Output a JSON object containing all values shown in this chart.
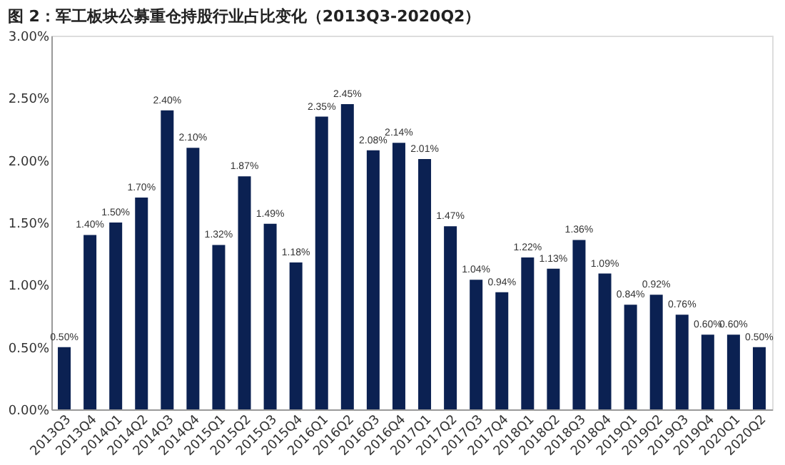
{
  "chart_data": {
    "type": "bar",
    "title": "图 2：军工板块公募重仓持股行业占比变化（2013Q3-2020Q2）",
    "categories": [
      "2013Q3",
      "2013Q4",
      "2014Q1",
      "2014Q2",
      "2014Q3",
      "2014Q4",
      "2015Q1",
      "2015Q2",
      "2015Q3",
      "2015Q4",
      "2016Q1",
      "2016Q2",
      "2016Q3",
      "2016Q4",
      "2017Q1",
      "2017Q2",
      "2017Q3",
      "2017Q4",
      "2018Q1",
      "2018Q2",
      "2018Q3",
      "2018Q4",
      "2019Q1",
      "2019Q2",
      "2019Q3",
      "2019Q4",
      "2020Q1",
      "2020Q2"
    ],
    "values": [
      0.5,
      1.4,
      1.5,
      1.7,
      2.4,
      2.1,
      1.32,
      1.87,
      1.49,
      1.18,
      2.35,
      2.45,
      2.08,
      2.14,
      2.01,
      1.47,
      1.04,
      0.94,
      1.22,
      1.13,
      1.36,
      1.09,
      0.84,
      0.92,
      0.76,
      0.6,
      0.6,
      0.5
    ],
    "value_labels": [
      "0.50%",
      "1.40%",
      "1.50%",
      "1.70%",
      "2.40%",
      "2.10%",
      "1.32%",
      "1.87%",
      "1.49%",
      "1.18%",
      "2.35%",
      "2.45%",
      "2.08%",
      "2.14%",
      "2.01%",
      "1.47%",
      "1.04%",
      "0.94%",
      "1.22%",
      "1.13%",
      "1.36%",
      "1.09%",
      "0.84%",
      "0.92%",
      "0.76%",
      "0.60%",
      "0.60%",
      "0.50%"
    ],
    "color": "#0b2152",
    "ylim": [
      0,
      3.0
    ],
    "yticks": [
      {
        "value": 0,
        "label": "0.00%"
      },
      {
        "value": 0.5,
        "label": "0.50%"
      },
      {
        "value": 1.0,
        "label": "1.00%"
      },
      {
        "value": 1.5,
        "label": "1.50%"
      },
      {
        "value": 2.0,
        "label": "2.00%"
      },
      {
        "value": 2.5,
        "label": "2.50%"
      },
      {
        "value": 3.0,
        "label": "3.00%"
      }
    ],
    "grid": false
  }
}
